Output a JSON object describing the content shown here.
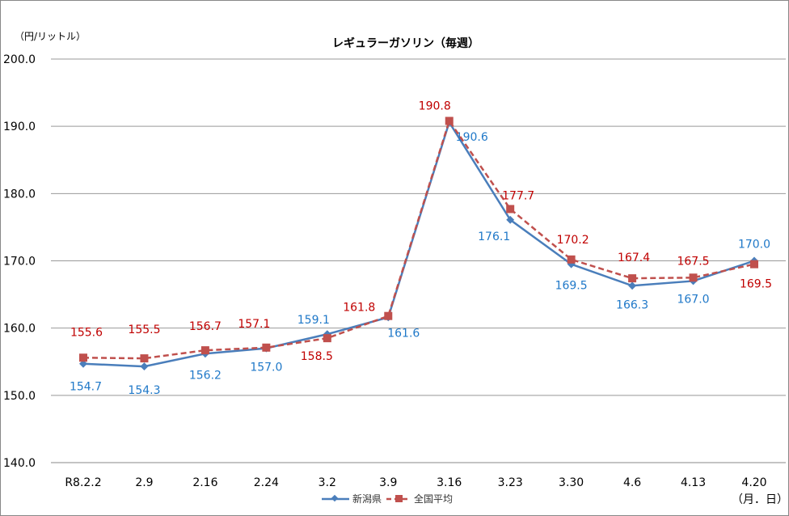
{
  "chart_data": {
    "type": "line",
    "title": "レギュラーガソリン（毎週）",
    "ylabel": "（円/リットル）",
    "xlabel": "（月．日）",
    "categories": [
      "R8.2.2",
      "2.9",
      "2.16",
      "2.24",
      "3.2",
      "3.9",
      "3.16",
      "3.23",
      "3.30",
      "4.6",
      "4.13",
      "4.20"
    ],
    "ylim": [
      140,
      200
    ],
    "yticks": [
      "140.0",
      "150.0",
      "160.0",
      "170.0",
      "180.0",
      "190.0",
      "200.0"
    ],
    "grid": true,
    "legend": "bottom",
    "series": [
      {
        "name": "新潟県",
        "color": "#4a7ebb",
        "label_color": "#1f78c8",
        "marker": "diamond",
        "style": "solid",
        "values": [
          154.7,
          154.3,
          156.2,
          157.0,
          159.1,
          161.6,
          190.6,
          176.1,
          169.5,
          166.3,
          167.0,
          170.0
        ]
      },
      {
        "name": "全国平均",
        "color": "#c0504d",
        "label_color": "#c00000",
        "marker": "square",
        "style": "dashed",
        "values": [
          155.6,
          155.5,
          156.7,
          157.1,
          158.5,
          161.8,
          190.8,
          177.7,
          170.2,
          167.4,
          167.5,
          169.5
        ]
      }
    ]
  }
}
